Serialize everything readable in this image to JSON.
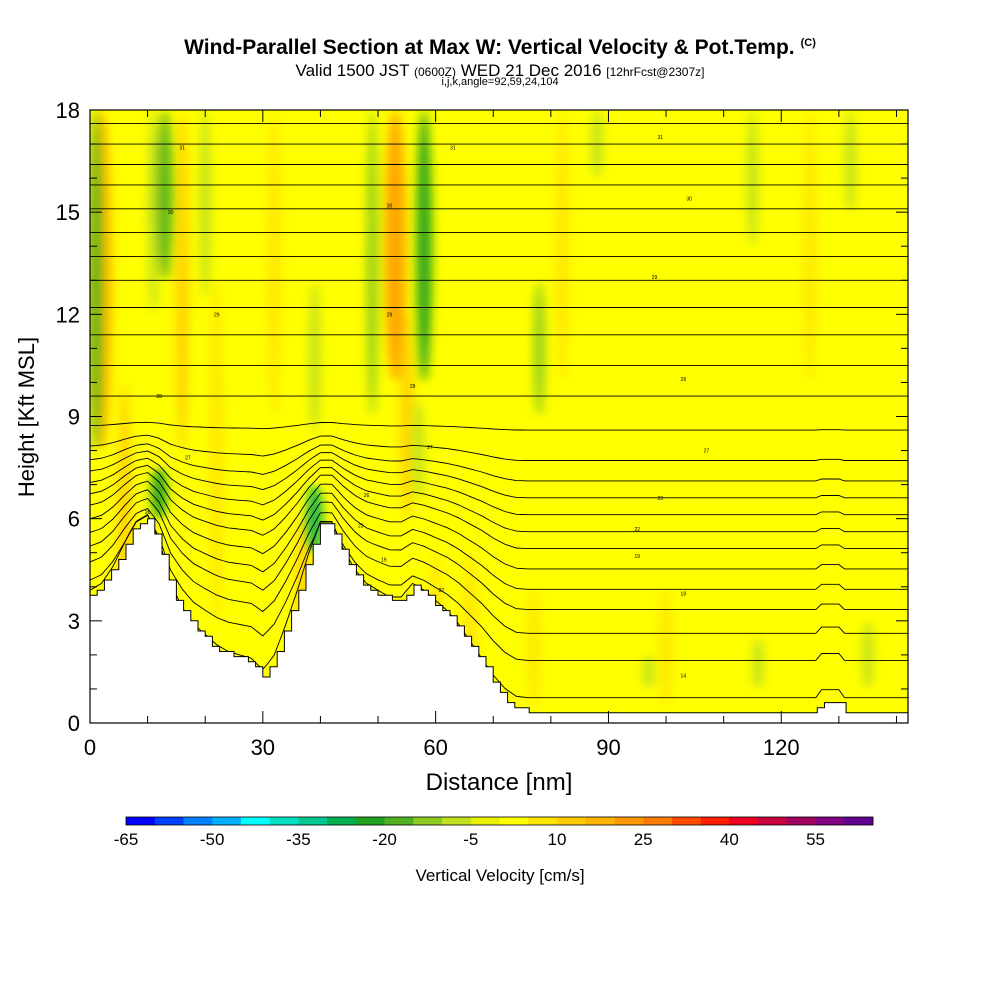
{
  "header": {
    "title": "Wind-Parallel Section at Max W: Vertical Velocity & Pot.Temp.",
    "copyright": "(C)",
    "subtitle_main": "Valid 1500 JST",
    "subtitle_utc": "(0600Z)",
    "subtitle_date": "WED 21 Dec 2016",
    "subtitle_fcst": "[12hrFcst@2307z]",
    "subtitle2": "i,j,k,angle=92,59,24,104"
  },
  "chart_data": {
    "type": "contour",
    "xlabel": "Distance [nm]",
    "ylabel": "Height [Kft MSL]",
    "xlim": [
      0,
      142
    ],
    "ylim": [
      0,
      18
    ],
    "x_ticks": [
      0,
      30,
      60,
      90,
      120
    ],
    "y_ticks": [
      0,
      3,
      6,
      9,
      12,
      15,
      18
    ],
    "colorbar": {
      "label": "Vertical Velocity [cm/s]",
      "tick_labels": [
        "-65",
        "-50",
        "-35",
        "-20",
        "-5",
        "10",
        "25",
        "40",
        "55"
      ],
      "levels": [
        -65,
        -60,
        -55,
        -50,
        -45,
        -40,
        -35,
        -30,
        -25,
        -20,
        -15,
        -10,
        -5,
        0,
        5,
        10,
        15,
        20,
        25,
        30,
        35,
        40,
        45,
        50,
        55,
        60
      ],
      "colors": [
        "#0000ff",
        "#0040ff",
        "#0080ff",
        "#00b0ff",
        "#00ffff",
        "#00e0c0",
        "#00c890",
        "#00b050",
        "#20a020",
        "#50b020",
        "#90cc20",
        "#c0e020",
        "#e8f000",
        "#ffff00",
        "#ffe400",
        "#ffcc00",
        "#ffb400",
        "#ff9800",
        "#ff7a00",
        "#ff4a00",
        "#ff1e00",
        "#ee0020",
        "#c80040",
        "#a00060",
        "#800080",
        "#600090"
      ]
    },
    "background_value_range": [
      0,
      5
    ],
    "terrain_kft": [
      [
        0,
        3.8
      ],
      [
        2,
        4.0
      ],
      [
        4,
        4.5
      ],
      [
        6,
        5.2
      ],
      [
        8,
        5.8
      ],
      [
        10,
        6.0
      ],
      [
        12,
        5.3
      ],
      [
        14,
        4.0
      ],
      [
        16,
        3.3
      ],
      [
        18,
        2.8
      ],
      [
        20,
        2.5
      ],
      [
        22,
        2.2
      ],
      [
        24,
        2.0
      ],
      [
        26,
        1.9
      ],
      [
        28,
        1.8
      ],
      [
        30,
        1.4
      ],
      [
        32,
        1.9
      ],
      [
        34,
        2.8
      ],
      [
        36,
        3.8
      ],
      [
        38,
        4.9
      ],
      [
        40,
        5.8
      ],
      [
        42,
        5.8
      ],
      [
        44,
        5.0
      ],
      [
        46,
        4.4
      ],
      [
        48,
        4.0
      ],
      [
        50,
        3.8
      ],
      [
        52,
        3.6
      ],
      [
        54,
        3.6
      ],
      [
        56,
        4.0
      ],
      [
        58,
        3.8
      ],
      [
        60,
        3.5
      ],
      [
        62,
        3.2
      ],
      [
        64,
        2.8
      ],
      [
        66,
        2.3
      ],
      [
        68,
        1.8
      ],
      [
        70,
        1.2
      ],
      [
        72,
        0.7
      ],
      [
        74,
        0.4
      ],
      [
        76,
        0.35
      ],
      [
        90,
        0.35
      ],
      [
        110,
        0.35
      ],
      [
        126,
        0.35
      ],
      [
        127,
        0.65
      ],
      [
        130,
        0.65
      ],
      [
        131,
        0.35
      ],
      [
        142,
        0.35
      ]
    ],
    "updrafts": [
      {
        "x": 2,
        "y0": 8,
        "y1": 18,
        "w": 15
      },
      {
        "x": 6,
        "y0": 2,
        "y1": 10,
        "w": 10
      },
      {
        "x": 16,
        "y0": 8,
        "y1": 18,
        "w": 10
      },
      {
        "x": 22,
        "y0": 3,
        "y1": 13,
        "w": 8
      },
      {
        "x": 32,
        "y0": 9,
        "y1": 18,
        "w": 8
      },
      {
        "x": 37,
        "y0": 2,
        "y1": 6,
        "w": 10
      },
      {
        "x": 53,
        "y0": 10,
        "y1": 18,
        "w": 20
      },
      {
        "x": 55,
        "y0": 6,
        "y1": 12,
        "w": 10
      },
      {
        "x": 60,
        "y0": 0.5,
        "y1": 5,
        "w": 8
      },
      {
        "x": 66,
        "y0": 0.5,
        "y1": 5,
        "w": 8
      },
      {
        "x": 77,
        "y0": 0.5,
        "y1": 4,
        "w": 8
      },
      {
        "x": 82,
        "y0": 10,
        "y1": 18,
        "w": 8
      },
      {
        "x": 100,
        "y0": 0.5,
        "y1": 4,
        "w": 7
      },
      {
        "x": 125,
        "y0": 10,
        "y1": 18,
        "w": 7
      }
    ],
    "downdrafts": [
      {
        "x": 1,
        "y0": 8,
        "y1": 18,
        "w": -18
      },
      {
        "x": 11,
        "y0": 12,
        "y1": 18,
        "w": -10
      },
      {
        "x": 12,
        "y0": 6,
        "y1": 7.5,
        "w": -22
      },
      {
        "x": 13,
        "y0": 13,
        "y1": 18,
        "w": -20
      },
      {
        "x": 20,
        "y0": 12.5,
        "y1": 18,
        "w": -8
      },
      {
        "x": 39,
        "y0": 8.5,
        "y1": 13,
        "w": -10
      },
      {
        "x": 39,
        "y0": 5,
        "y1": 7,
        "w": -30
      },
      {
        "x": 49,
        "y0": 9,
        "y1": 18,
        "w": -14
      },
      {
        "x": 58,
        "y0": 10,
        "y1": 18,
        "w": -25
      },
      {
        "x": 57,
        "y0": 6.5,
        "y1": 9.5,
        "w": -10
      },
      {
        "x": 78,
        "y0": 9,
        "y1": 13,
        "w": -12
      },
      {
        "x": 88,
        "y0": 16,
        "y1": 18,
        "w": -10
      },
      {
        "x": 97,
        "y0": 1,
        "y1": 2,
        "w": -10
      },
      {
        "x": 115,
        "y0": 14,
        "y1": 18,
        "w": -8
      },
      {
        "x": 132,
        "y0": 15,
        "y1": 18,
        "w": -8
      },
      {
        "x": 135,
        "y0": 1,
        "y1": 3,
        "w": -10
      },
      {
        "x": 116,
        "y0": 1,
        "y1": 2.5,
        "w": -8
      }
    ],
    "isentrope_heights_kft_far": [
      0.7,
      1.8,
      2.6,
      3.3,
      3.9,
      4.5,
      5.1,
      5.6,
      6.1,
      6.6,
      7.1,
      7.7,
      8.6,
      9.6,
      10.5,
      11.4,
      12.2,
      13.0,
      13.7,
      14.4,
      15.1,
      15.8,
      16.4,
      17.0,
      17.6
    ],
    "isentrope_labels": [
      {
        "x": 103,
        "y": 1.4,
        "text": "14"
      },
      {
        "x": 103,
        "y": 3.8,
        "text": "18"
      },
      {
        "x": 51,
        "y": 4.8,
        "text": "19"
      },
      {
        "x": 95,
        "y": 4.9,
        "text": "19"
      },
      {
        "x": 61,
        "y": 3.9,
        "text": "22"
      },
      {
        "x": 95,
        "y": 5.7,
        "text": "22"
      },
      {
        "x": 47,
        "y": 5.8,
        "text": "23"
      },
      {
        "x": 99,
        "y": 6.6,
        "text": "23"
      },
      {
        "x": 48,
        "y": 6.7,
        "text": "26"
      },
      {
        "x": 10,
        "y": 6.2,
        "text": "26"
      },
      {
        "x": 17,
        "y": 7.8,
        "text": "27"
      },
      {
        "x": 59,
        "y": 8.1,
        "text": "27"
      },
      {
        "x": 107,
        "y": 8.0,
        "text": "27"
      },
      {
        "x": 12,
        "y": 9.6,
        "text": "28"
      },
      {
        "x": 56,
        "y": 9.9,
        "text": "28"
      },
      {
        "x": 103,
        "y": 10.1,
        "text": "28"
      },
      {
        "x": 22,
        "y": 12.0,
        "text": "29"
      },
      {
        "x": 52,
        "y": 12.0,
        "text": "29"
      },
      {
        "x": 98,
        "y": 13.1,
        "text": "29"
      },
      {
        "x": 14,
        "y": 15.0,
        "text": "30"
      },
      {
        "x": 52,
        "y": 15.2,
        "text": "30"
      },
      {
        "x": 104,
        "y": 15.4,
        "text": "30"
      },
      {
        "x": 16,
        "y": 16.9,
        "text": "31"
      },
      {
        "x": 63,
        "y": 16.9,
        "text": "31"
      },
      {
        "x": 99,
        "y": 17.2,
        "text": "31"
      }
    ]
  }
}
